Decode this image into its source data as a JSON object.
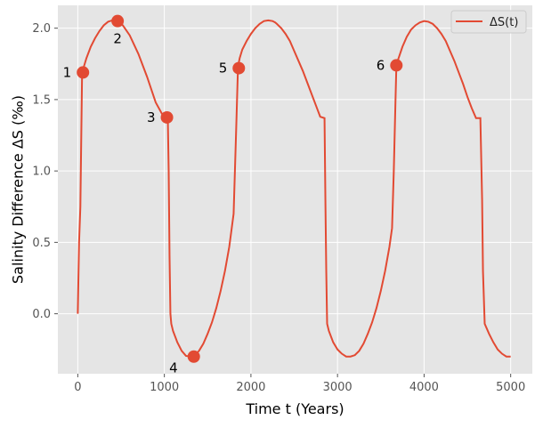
{
  "chart_data": {
    "type": "line",
    "xlabel": "Time t (Years)",
    "ylabel": "Salinity Difference ΔS (‰)",
    "xlim": [
      -230,
      5250
    ],
    "ylim": [
      -0.42,
      2.16
    ],
    "xticks": [
      0,
      1000,
      2000,
      3000,
      4000,
      5000
    ],
    "yticks": [
      0.0,
      0.5,
      1.0,
      1.5,
      2.0
    ],
    "xtick_labels": [
      "0",
      "1000",
      "2000",
      "3000",
      "4000",
      "5000"
    ],
    "ytick_labels": [
      "0.0",
      "0.5",
      "1.0",
      "1.5",
      "2.0"
    ],
    "grid": true,
    "legend_position": "top-right",
    "line_color": "#e24a33",
    "background_color": "#e5e5e5",
    "series": [
      {
        "name": "ΔS(t)",
        "x": [
          0,
          15,
          30,
          50,
          70,
          100,
          150,
          200,
          250,
          300,
          350,
          400,
          460,
          520,
          600,
          700,
          800,
          900,
          1000,
          1040,
          1050,
          1060,
          1070,
          1080,
          1100,
          1150,
          1200,
          1250,
          1300,
          1350,
          1400,
          1450,
          1500,
          1550,
          1600,
          1650,
          1700,
          1750,
          1800,
          1830,
          1850,
          1860,
          1870,
          1900,
          1950,
          2000,
          2050,
          2100,
          2150,
          2200,
          2250,
          2280,
          2300,
          2350,
          2400,
          2450,
          2500,
          2550,
          2600,
          2650,
          2700,
          2750,
          2800,
          2850,
          2860,
          2870,
          2880,
          2900,
          2950,
          3000,
          3050,
          3100,
          3150,
          3200,
          3250,
          3300,
          3350,
          3400,
          3450,
          3500,
          3550,
          3600,
          3630,
          3650,
          3670,
          3680,
          3700,
          3750,
          3800,
          3850,
          3900,
          3950,
          4000,
          4050,
          4100,
          4150,
          4200,
          4250,
          4300,
          4350,
          4400,
          4450,
          4500,
          4550,
          4600,
          4650,
          4670,
          4680,
          4700,
          4750,
          4800,
          4850,
          4900,
          4950,
          5000
        ],
        "y": [
          0.0,
          0.5,
          0.75,
          1.69,
          1.73,
          1.79,
          1.87,
          1.93,
          1.98,
          2.02,
          2.045,
          2.055,
          2.05,
          2.02,
          1.95,
          1.82,
          1.66,
          1.48,
          1.37,
          1.37,
          1.0,
          0.4,
          0.0,
          -0.07,
          -0.12,
          -0.2,
          -0.26,
          -0.295,
          -0.3,
          -0.29,
          -0.26,
          -0.21,
          -0.14,
          -0.06,
          0.04,
          0.16,
          0.3,
          0.47,
          0.7,
          1.3,
          1.72,
          1.76,
          1.79,
          1.85,
          1.91,
          1.96,
          2.0,
          2.03,
          2.05,
          2.055,
          2.05,
          2.04,
          2.03,
          2.0,
          1.96,
          1.91,
          1.84,
          1.77,
          1.7,
          1.62,
          1.54,
          1.46,
          1.38,
          1.37,
          0.8,
          0.3,
          -0.07,
          -0.12,
          -0.2,
          -0.25,
          -0.28,
          -0.3,
          -0.3,
          -0.29,
          -0.26,
          -0.21,
          -0.14,
          -0.06,
          0.04,
          0.16,
          0.3,
          0.47,
          0.6,
          1.0,
          1.5,
          1.74,
          1.78,
          1.87,
          1.94,
          1.99,
          2.02,
          2.04,
          2.05,
          2.045,
          2.03,
          2.0,
          1.96,
          1.91,
          1.84,
          1.77,
          1.69,
          1.61,
          1.52,
          1.44,
          1.37,
          1.37,
          0.8,
          0.3,
          -0.07,
          -0.14,
          -0.2,
          -0.25,
          -0.28,
          -0.3,
          -0.3
        ]
      }
    ],
    "points": [
      {
        "label": "1",
        "x": 60,
        "y": 1.69,
        "side": "left"
      },
      {
        "label": "2",
        "x": 460,
        "y": 2.05,
        "side": "below"
      },
      {
        "label": "3",
        "x": 1030,
        "y": 1.375,
        "side": "left"
      },
      {
        "label": "4",
        "x": 1340,
        "y": -0.3,
        "side": "belowleft"
      },
      {
        "label": "5",
        "x": 1860,
        "y": 1.72,
        "side": "left"
      },
      {
        "label": "6",
        "x": 3680,
        "y": 1.74,
        "side": "left"
      }
    ],
    "marker_color": "#e24a33"
  }
}
